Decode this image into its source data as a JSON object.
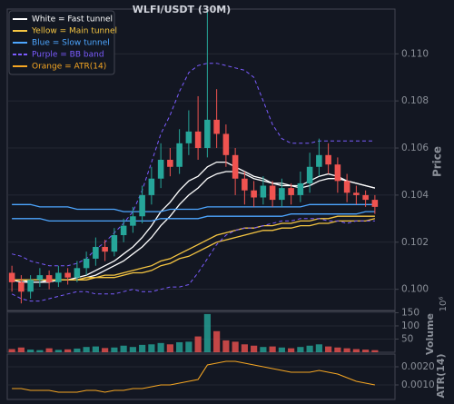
{
  "chart_data": [
    {
      "type": "candlestick",
      "title": "WLFI/USDT (30M)",
      "ylabel": "Price",
      "up_color": "#26a69a",
      "down_color": "#ef5350",
      "ylim": [
        0.0991,
        0.1119
      ],
      "yticks": [
        {
          "value": 0.1,
          "label": "0.100"
        },
        {
          "value": 0.102,
          "label": "0.102"
        },
        {
          "value": 0.104,
          "label": "0.104"
        },
        {
          "value": 0.106,
          "label": "0.106"
        },
        {
          "value": 0.108,
          "label": "0.108"
        },
        {
          "value": 0.11,
          "label": "0.110"
        }
      ],
      "grid": true,
      "legend": "upper left",
      "open": [
        0.1007,
        0.1003,
        0.0999,
        0.1004,
        0.1006,
        0.1003,
        0.1007,
        0.1005,
        0.1009,
        0.1013,
        0.1018,
        0.1016,
        0.1023,
        0.1027,
        0.1031,
        0.104,
        0.1047,
        0.1055,
        0.1052,
        0.1062,
        0.1067,
        0.106,
        0.1072,
        0.1066,
        0.1057,
        0.1047,
        0.1042,
        0.1039,
        0.1044,
        0.1038,
        0.1043,
        0.104,
        0.1045,
        0.1052,
        0.1057,
        0.1053,
        0.1046,
        0.1041,
        0.104,
        0.1038
      ],
      "high": [
        0.101,
        0.1006,
        0.1006,
        0.1009,
        0.1008,
        0.101,
        0.1009,
        0.1012,
        0.1016,
        0.1022,
        0.1021,
        0.1026,
        0.103,
        0.1035,
        0.1044,
        0.1052,
        0.1062,
        0.106,
        0.1068,
        0.1076,
        0.1082,
        0.1118,
        0.1085,
        0.107,
        0.106,
        0.105,
        0.1046,
        0.1048,
        0.1046,
        0.1047,
        0.1045,
        0.105,
        0.1058,
        0.1064,
        0.1062,
        0.1056,
        0.1049,
        0.1044,
        0.1042,
        0.104
      ],
      "low": [
        0.0999,
        0.0994,
        0.0996,
        0.1001,
        0.1,
        0.1001,
        0.1002,
        0.1003,
        0.1006,
        0.101,
        0.1012,
        0.1014,
        0.102,
        0.1024,
        0.1028,
        0.1036,
        0.1043,
        0.1048,
        0.1049,
        0.1057,
        0.1055,
        0.1056,
        0.106,
        0.1052,
        0.104,
        0.1036,
        0.1035,
        0.1036,
        0.1035,
        0.1035,
        0.1036,
        0.1037,
        0.1041,
        0.1048,
        0.1049,
        0.1041,
        0.1037,
        0.1036,
        0.1035,
        0.1032
      ],
      "close": [
        0.1003,
        0.0999,
        0.1004,
        0.1006,
        0.1003,
        0.1007,
        0.1005,
        0.1009,
        0.1013,
        0.1018,
        0.1016,
        0.1023,
        0.1027,
        0.1031,
        0.104,
        0.1047,
        0.1055,
        0.1052,
        0.1062,
        0.1067,
        0.106,
        0.1072,
        0.1066,
        0.1057,
        0.1047,
        0.1042,
        0.1039,
        0.1044,
        0.1038,
        0.1043,
        0.104,
        0.1045,
        0.1052,
        0.1057,
        0.1053,
        0.1046,
        0.1041,
        0.104,
        0.1038,
        0.1035
      ],
      "series": [
        {
          "name": "White = Fast tunnel",
          "color": "#ffffff",
          "dashed": false,
          "lines": [
            [
              0.1004,
              0.1003,
              0.1003,
              0.1003,
              0.1004,
              0.1004,
              0.1004,
              0.1005,
              0.1006,
              0.1008,
              0.101,
              0.1012,
              0.1015,
              0.1018,
              0.1022,
              0.1027,
              0.1033,
              0.1037,
              0.1042,
              0.1046,
              0.1048,
              0.1052,
              0.1054,
              0.1054,
              0.1052,
              0.105,
              0.1048,
              0.1047,
              0.1045,
              0.1045,
              0.1044,
              0.1044,
              0.1046,
              0.1048,
              0.1049,
              0.1048,
              0.1046,
              0.1045,
              0.1044,
              0.1043
            ],
            [
              0.1004,
              0.1004,
              0.1003,
              0.1003,
              0.1003,
              0.1004,
              0.1004,
              0.1004,
              0.1005,
              0.1006,
              0.1008,
              0.101,
              0.1012,
              0.1015,
              0.1018,
              0.1022,
              0.1027,
              0.1031,
              0.1036,
              0.104,
              0.1043,
              0.1047,
              0.1049,
              0.105,
              0.105,
              0.1049,
              0.1047,
              0.1046,
              0.1045,
              0.1044,
              0.1044,
              0.1043,
              0.1044,
              0.1046,
              0.1047,
              0.1047,
              0.1046,
              0.1045,
              0.1044,
              0.1043
            ]
          ]
        },
        {
          "name": "Yellow = Main tunnel",
          "color": "#f5c542",
          "dashed": false,
          "lines": [
            [
              0.1004,
              0.1004,
              0.1004,
              0.1004,
              0.1004,
              0.1004,
              0.1004,
              0.1004,
              0.1005,
              0.1005,
              0.1006,
              0.1006,
              0.1007,
              0.1008,
              0.1009,
              0.101,
              0.1012,
              0.1013,
              0.1015,
              0.1017,
              0.1019,
              0.1021,
              0.1023,
              0.1024,
              0.1025,
              0.1026,
              0.1026,
              0.1027,
              0.1027,
              0.1028,
              0.1028,
              0.1029,
              0.1029,
              0.103,
              0.103,
              0.1031,
              0.1031,
              0.1031,
              0.1031,
              0.1031
            ],
            [
              0.1004,
              0.1004,
              0.1004,
              0.1004,
              0.1004,
              0.1004,
              0.1004,
              0.1004,
              0.1004,
              0.1005,
              0.1005,
              0.1005,
              0.1006,
              0.1007,
              0.1007,
              0.1008,
              0.101,
              0.1011,
              0.1013,
              0.1014,
              0.1016,
              0.1018,
              0.102,
              0.1021,
              0.1022,
              0.1023,
              0.1024,
              0.1025,
              0.1025,
              0.1026,
              0.1026,
              0.1027,
              0.1027,
              0.1028,
              0.1028,
              0.1029,
              0.1029,
              0.1029,
              0.1029,
              0.103
            ]
          ]
        },
        {
          "name": "Blue = Slow tunnel",
          "color": "#4da6ff",
          "dashed": false,
          "lines": [
            [
              0.1036,
              0.1036,
              0.1036,
              0.1035,
              0.1035,
              0.1035,
              0.1035,
              0.1034,
              0.1034,
              0.1034,
              0.1034,
              0.1034,
              0.1033,
              0.1033,
              0.1033,
              0.1033,
              0.1033,
              0.1034,
              0.1034,
              0.1034,
              0.1034,
              0.1035,
              0.1035,
              0.1035,
              0.1035,
              0.1035,
              0.1035,
              0.1035,
              0.1035,
              0.1035,
              0.1035,
              0.1035,
              0.1036,
              0.1036,
              0.1036,
              0.1036,
              0.1036,
              0.1036,
              0.1036,
              0.1036
            ],
            [
              0.103,
              0.103,
              0.103,
              0.103,
              0.1029,
              0.1029,
              0.1029,
              0.1029,
              0.1029,
              0.1029,
              0.1029,
              0.1029,
              0.1029,
              0.1029,
              0.1029,
              0.1029,
              0.103,
              0.103,
              0.103,
              0.103,
              0.103,
              0.1031,
              0.1031,
              0.1031,
              0.1031,
              0.1031,
              0.1031,
              0.1031,
              0.1031,
              0.1031,
              0.1032,
              0.1032,
              0.1032,
              0.1032,
              0.1032,
              0.1032,
              0.1032,
              0.1032,
              0.1033,
              0.1033
            ]
          ]
        },
        {
          "name": "Purple = BB band",
          "color": "#7b5cff",
          "dashed": true,
          "lines": [
            [
              0.1015,
              0.1014,
              0.1012,
              0.1011,
              0.101,
              0.101,
              0.101,
              0.1011,
              0.1013,
              0.1017,
              0.102,
              0.1024,
              0.1028,
              0.1033,
              0.1042,
              0.1054,
              0.1066,
              0.1074,
              0.1084,
              0.1092,
              0.1095,
              0.1096,
              0.1096,
              0.1095,
              0.1094,
              0.1093,
              0.109,
              0.108,
              0.107,
              0.1064,
              0.1062,
              0.1062,
              0.1062,
              0.1063,
              0.1063,
              0.1063,
              0.1063,
              0.1063,
              0.1063,
              0.1063
            ],
            [
              0.0998,
              0.0996,
              0.0995,
              0.0995,
              0.0996,
              0.0997,
              0.0998,
              0.0999,
              0.0999,
              0.0998,
              0.0998,
              0.0998,
              0.0999,
              0.1,
              0.0999,
              0.0999,
              0.1,
              0.1001,
              0.1001,
              0.1002,
              0.1007,
              0.1013,
              0.1019,
              0.1023,
              0.1025,
              0.1026,
              0.1026,
              0.1027,
              0.1028,
              0.1029,
              0.1029,
              0.103,
              0.103,
              0.103,
              0.1029,
              0.1029,
              0.1028,
              0.1029,
              0.1029,
              0.1029
            ]
          ]
        }
      ]
    },
    {
      "type": "bar",
      "ylabel": "Volume",
      "offset_label": "10⁶",
      "ylim": [
        0,
        155
      ],
      "yticks": [
        50,
        100,
        150
      ],
      "grid": true,
      "values": [
        12,
        18,
        10,
        8,
        15,
        9,
        11,
        14,
        20,
        22,
        16,
        18,
        25,
        20,
        28,
        30,
        35,
        30,
        38,
        40,
        60,
        145,
        80,
        45,
        40,
        30,
        25,
        20,
        22,
        18,
        15,
        20,
        25,
        30,
        22,
        18,
        15,
        12,
        10,
        8
      ]
    },
    {
      "type": "line",
      "ylabel": "ATR(14)",
      "ylim": [
        0.0002,
        0.0027
      ],
      "yticks": [
        {
          "value": 0.001,
          "label": "0.0010"
        },
        {
          "value": 0.002,
          "label": "0.0020"
        }
      ],
      "grid": true,
      "series": [
        {
          "name": "Orange = ATR(14)",
          "color": "#f5a623",
          "values": [
            0.0008,
            0.0008,
            0.0007,
            0.0007,
            0.0007,
            0.0006,
            0.0006,
            0.0006,
            0.0007,
            0.0007,
            0.0006,
            0.0007,
            0.0007,
            0.0008,
            0.0008,
            0.0009,
            0.001,
            0.001,
            0.0011,
            0.0012,
            0.0013,
            0.0021,
            0.0022,
            0.0023,
            0.0023,
            0.0022,
            0.0021,
            0.002,
            0.0019,
            0.0018,
            0.0017,
            0.0017,
            0.0017,
            0.0018,
            0.0017,
            0.0016,
            0.0014,
            0.0012,
            0.0011,
            0.001
          ]
        }
      ]
    }
  ]
}
